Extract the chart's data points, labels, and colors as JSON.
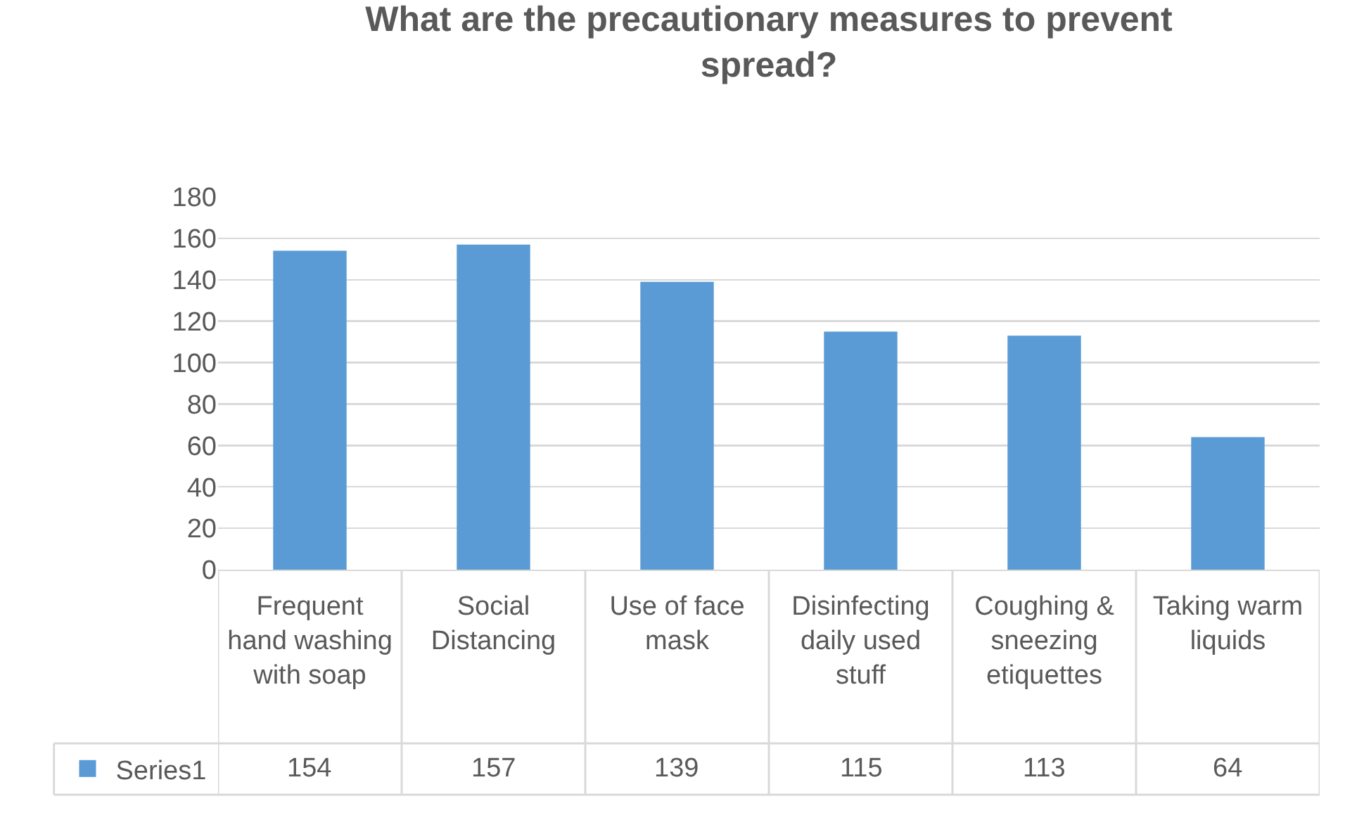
{
  "chart_data": {
    "type": "bar",
    "title": "What are the precautionary measures to prevent spread?",
    "categories": [
      "Frequent hand washing with soap",
      "Social Distancing",
      "Use of face mask",
      "Disinfecting daily used stuff",
      "Coughing & sneezing etiquettes",
      "Taking warm liquids"
    ],
    "series": [
      {
        "name": "Series1",
        "color": "#5b9bd5",
        "values": [
          154,
          157,
          139,
          115,
          113,
          64
        ]
      }
    ],
    "ylim": [
      0,
      180
    ],
    "yticks": [
      0,
      20,
      40,
      60,
      80,
      100,
      120,
      140,
      160,
      180
    ],
    "grid": "y",
    "legend": "bottom left",
    "data_labels": true
  }
}
